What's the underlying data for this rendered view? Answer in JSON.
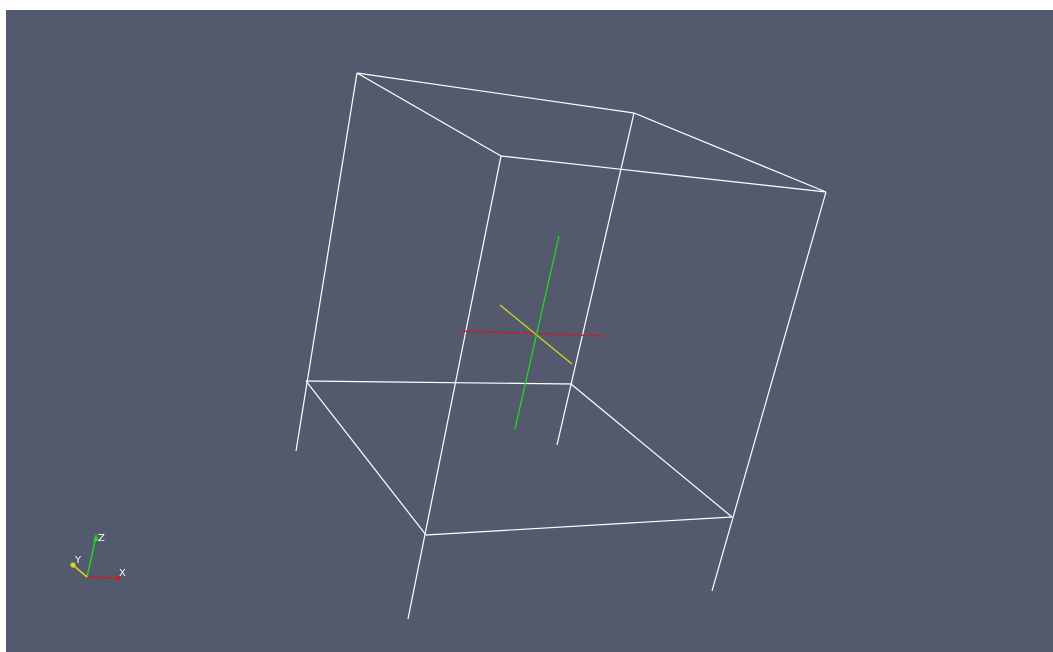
{
  "viewport": {
    "background": "#545a6d",
    "outline_color": "#ffffff"
  },
  "center_cross": {
    "x_color": "#c0222b",
    "y_color": "#d9d21f",
    "z_color": "#1fd81f"
  },
  "orientation_axes": {
    "x_label": "X",
    "y_label": "Y",
    "z_label": "Z",
    "x_color": "#c0222b",
    "y_color": "#d9d21f",
    "z_color": "#1fd81f"
  }
}
